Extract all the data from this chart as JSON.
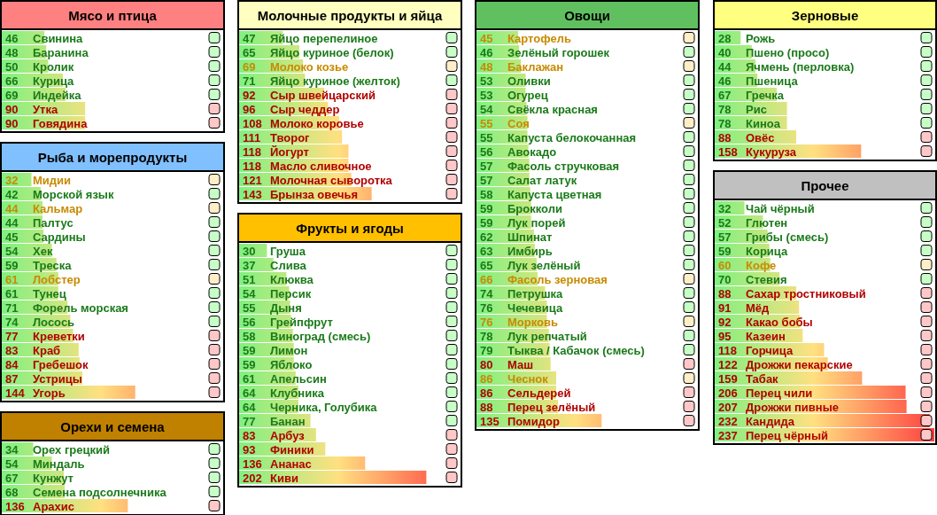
{
  "chart_data": [
    {
      "type": "bar",
      "orientation": "horizontal",
      "title": "Мясо и птица",
      "data_labels": true,
      "categories": [
        "Свинина",
        "Баранина",
        "Кролик",
        "Курица",
        "Индейка",
        "Утка",
        "Говядина"
      ],
      "values": [
        46,
        48,
        50,
        66,
        69,
        90,
        90
      ],
      "colors": [
        "#1a7a1a",
        "#1a7a1a",
        "#1a7a1a",
        "#1a7a1a",
        "#1a7a1a",
        "#b00000",
        "#b00000"
      ]
    },
    {
      "type": "bar",
      "orientation": "horizontal",
      "title": "Молочные продукты и яйца",
      "data_labels": true,
      "categories": [
        "Яйцо перепелиное",
        "Яйцо куриное (белок)",
        "Молоко козье",
        "Яйцо куриное (желток)",
        "Сыр швейцарский",
        "Сыр чеддер",
        "Молоко коровье",
        "Творог",
        "Йогурт",
        "Масло сливочное",
        "Молочная сыворотка",
        "Брынза овечья"
      ],
      "values": [
        47,
        65,
        69,
        71,
        92,
        96,
        108,
        111,
        118,
        118,
        121,
        143
      ],
      "colors": [
        "#1a7a1a",
        "#1a7a1a",
        "#c88a00",
        "#1a7a1a",
        "#b00000",
        "#b00000",
        "#b00000",
        "#b00000",
        "#b00000",
        "#b00000",
        "#b00000",
        "#b00000"
      ]
    },
    {
      "type": "bar",
      "orientation": "horizontal",
      "title": "Овощи",
      "data_labels": true,
      "categories": [
        "Картофель",
        "Зелёный горошек",
        "Баклажан",
        "Оливки",
        "Огурец",
        "Свёкла красная",
        "Соя",
        "Капуста белокочанная",
        "Авокадо",
        "Фасоль стручковая",
        "Салат латук",
        "Капуста цветная",
        "Брокколи",
        "Лук порей",
        "Шпинат",
        "Имбирь",
        "Лук зелёный",
        "Фасоль зерновая",
        "Петрушка",
        "Чечевица",
        "Морковь",
        "Лук репчатый",
        "Тыква / Кабачок (смесь)",
        "Маш",
        "Чеснок",
        "Сельдерей",
        "Перец зелёный",
        "Помидор"
      ],
      "values": [
        45,
        46,
        48,
        53,
        53,
        54,
        55,
        55,
        56,
        57,
        57,
        58,
        59,
        59,
        62,
        63,
        65,
        66,
        74,
        76,
        76,
        78,
        79,
        80,
        86,
        86,
        88,
        135
      ],
      "colors": [
        "#c88a00",
        "#1a7a1a",
        "#c88a00",
        "#1a7a1a",
        "#1a7a1a",
        "#1a7a1a",
        "#c88a00",
        "#1a7a1a",
        "#1a7a1a",
        "#1a7a1a",
        "#1a7a1a",
        "#1a7a1a",
        "#1a7a1a",
        "#1a7a1a",
        "#1a7a1a",
        "#1a7a1a",
        "#1a7a1a",
        "#c88a00",
        "#1a7a1a",
        "#1a7a1a",
        "#c88a00",
        "#1a7a1a",
        "#1a7a1a",
        "#b00000",
        "#c88a00",
        "#b00000",
        "#b00000",
        "#b00000"
      ]
    },
    {
      "type": "bar",
      "orientation": "horizontal",
      "title": "Зерновые",
      "data_labels": true,
      "categories": [
        "Рожь",
        "Пшено (просо)",
        "Ячмень (перловка)",
        "Пшеница",
        "Гречка",
        "Рис",
        "Киноа",
        "Овёс",
        "Кукуруза"
      ],
      "values": [
        28,
        40,
        44,
        46,
        67,
        78,
        78,
        88,
        158
      ],
      "colors": [
        "#1a7a1a",
        "#1a7a1a",
        "#1a7a1a",
        "#1a7a1a",
        "#1a7a1a",
        "#1a7a1a",
        "#1a7a1a",
        "#b00000",
        "#b00000"
      ]
    },
    {
      "type": "bar",
      "orientation": "horizontal",
      "title": "Рыба и морепродукты",
      "data_labels": true,
      "categories": [
        "Мидии",
        "Морской язык",
        "Кальмар",
        "Палтус",
        "Сардины",
        "Хек",
        "Треска",
        "Лобстер",
        "Тунец",
        "Форель морская",
        "Лосось",
        "Креветки",
        "Краб",
        "Гребешок",
        "Устрицы",
        "Угорь"
      ],
      "values": [
        32,
        42,
        44,
        44,
        45,
        54,
        59,
        61,
        61,
        71,
        74,
        77,
        83,
        84,
        87,
        144
      ],
      "colors": [
        "#c88a00",
        "#1a7a1a",
        "#c88a00",
        "#1a7a1a",
        "#1a7a1a",
        "#1a7a1a",
        "#1a7a1a",
        "#c88a00",
        "#1a7a1a",
        "#1a7a1a",
        "#1a7a1a",
        "#b00000",
        "#b00000",
        "#b00000",
        "#b00000",
        "#b00000"
      ]
    },
    {
      "type": "bar",
      "orientation": "horizontal",
      "title": "Фрукты и ягоды",
      "data_labels": true,
      "categories": [
        "Груша",
        "Слива",
        "Клюква",
        "Персик",
        "Дыня",
        "Грейпфрут",
        "Виноград (смесь)",
        "Лимон",
        "Яблоко",
        "Апельсин",
        "Клубника",
        "Черника, Голубика",
        "Банан",
        "Арбуз",
        "Финики",
        "Ананас",
        "Киви"
      ],
      "values": [
        30,
        37,
        51,
        54,
        55,
        56,
        58,
        59,
        59,
        61,
        64,
        64,
        77,
        83,
        93,
        136,
        202
      ],
      "colors": [
        "#1a7a1a",
        "#1a7a1a",
        "#1a7a1a",
        "#1a7a1a",
        "#1a7a1a",
        "#1a7a1a",
        "#1a7a1a",
        "#1a7a1a",
        "#1a7a1a",
        "#1a7a1a",
        "#1a7a1a",
        "#1a7a1a",
        "#1a7a1a",
        "#b00000",
        "#b00000",
        "#b00000",
        "#b00000"
      ]
    },
    {
      "type": "bar",
      "orientation": "horizontal",
      "title": "Прочее",
      "data_labels": true,
      "categories": [
        "Чай чёрный",
        "Глютен",
        "Грибы (смесь)",
        "Корица",
        "Кофе",
        "Стевия",
        "Сахар тростниковый",
        "Мёд",
        "Какао бобы",
        "Казеин",
        "Горчица",
        "Дрожжи пекарские",
        "Табак",
        "Перец чили",
        "Дрожжи пивные",
        "Кандида",
        "Перец чёрный"
      ],
      "values": [
        32,
        52,
        57,
        59,
        60,
        70,
        88,
        91,
        92,
        95,
        118,
        122,
        159,
        206,
        207,
        232,
        237
      ],
      "colors": [
        "#1a7a1a",
        "#1a7a1a",
        "#1a7a1a",
        "#1a7a1a",
        "#c88a00",
        "#1a7a1a",
        "#b00000",
        "#b00000",
        "#b00000",
        "#b00000",
        "#b00000",
        "#b00000",
        "#b00000",
        "#b00000",
        "#b00000",
        "#b00000",
        "#b00000"
      ]
    },
    {
      "type": "bar",
      "orientation": "horizontal",
      "title": "Орехи и семена",
      "data_labels": true,
      "categories": [
        "Орех грецкий",
        "Миндаль",
        "Кунжут",
        "Семена подсолнечника",
        "Арахис"
      ],
      "values": [
        34,
        54,
        67,
        68,
        136
      ],
      "colors": [
        "#1a7a1a",
        "#1a7a1a",
        "#1a7a1a",
        "#1a7a1a",
        "#b00000"
      ]
    }
  ]
}
